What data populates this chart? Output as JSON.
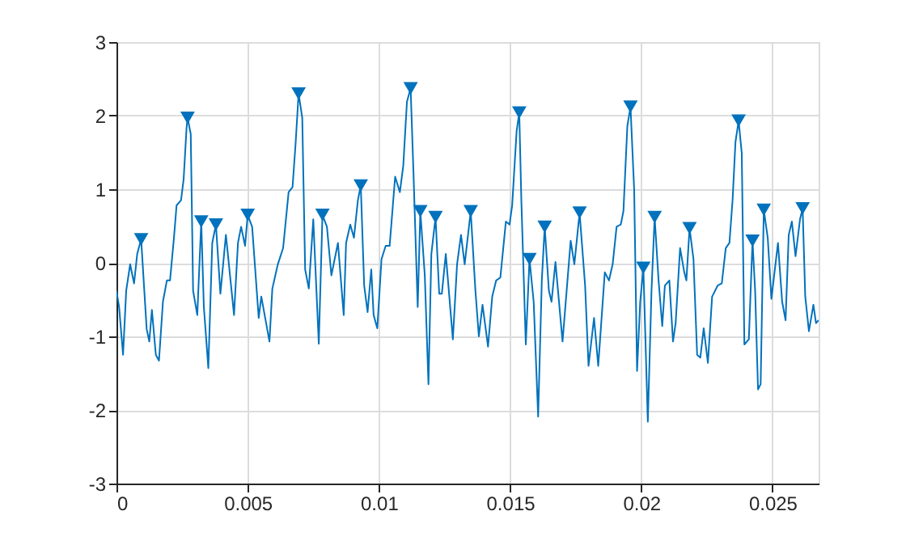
{
  "chart_data": {
    "type": "line",
    "xlim": [
      0,
      0.02676
    ],
    "xticks": [
      0,
      0.005,
      0.01,
      0.015,
      0.02,
      0.025
    ],
    "ylim": [
      -3,
      3
    ],
    "yticks": [
      -3,
      -2,
      -1,
      0,
      1,
      2,
      3
    ],
    "grid": true,
    "series": [
      {
        "color": "#0072bd",
        "marker": "none",
        "x": [
          0,
          0.0001,
          0.00025,
          0.00037,
          0.00052,
          0.00067,
          0.00079,
          0.00094,
          0.00115,
          0.00125,
          0.00135,
          0.0015,
          0.00162,
          0.00177,
          0.00192,
          0.00204,
          0.00219,
          0.00229,
          0.00246,
          0.00256,
          0.00267,
          0.00271,
          0.00283,
          0.00292,
          0.00308,
          0.00323,
          0.00333,
          0.0035,
          0.00365,
          0.00379,
          0.00396,
          0.00417,
          0.00448,
          0.00463,
          0.00475,
          0.0049,
          0.005,
          0.00517,
          0.00542,
          0.00552,
          0.00583,
          0.00594,
          0.00615,
          0.00635,
          0.00656,
          0.00671,
          0.00683,
          0.00694,
          0.00708,
          0.00719,
          0.00733,
          0.0075,
          0.00771,
          0.00785,
          0.00802,
          0.00819,
          0.00844,
          0.00866,
          0.00875,
          0.00891,
          0.00905,
          0.0092,
          0.00931,
          0.00944,
          0.00957,
          0.00971,
          0.0098,
          0.00994,
          0.0101,
          0.01026,
          0.01041,
          0.01062,
          0.0108,
          0.01093,
          0.01107,
          0.01121,
          0.01132,
          0.01148,
          0.01158,
          0.01175,
          0.01189,
          0.012,
          0.01216,
          0.0123,
          0.0124,
          0.01255,
          0.01282,
          0.01298,
          0.01313,
          0.01327,
          0.0135,
          0.01368,
          0.01381,
          0.01395,
          0.01416,
          0.01432,
          0.01447,
          0.01463,
          0.01484,
          0.01498,
          0.01508,
          0.01525,
          0.01535,
          0.01543,
          0.0156,
          0.01574,
          0.0159,
          0.01607,
          0.01621,
          0.01632,
          0.01648,
          0.01658,
          0.01673,
          0.017,
          0.01731,
          0.01745,
          0.01765,
          0.01786,
          0.01799,
          0.0182,
          0.01836,
          0.01861,
          0.01877,
          0.01891,
          0.01906,
          0.01922,
          0.01932,
          0.01947,
          0.01959,
          0.01973,
          0.01984,
          0.01996,
          0.02008,
          0.02025,
          0.02039,
          0.02051,
          0.02066,
          0.0208,
          0.0209,
          0.02107,
          0.02121,
          0.02131,
          0.02148,
          0.02164,
          0.02172,
          0.02184,
          0.02199,
          0.02213,
          0.02225,
          0.02238,
          0.02254,
          0.0227,
          0.02291,
          0.02307,
          0.02322,
          0.02336,
          0.02348,
          0.02359,
          0.02371,
          0.02383,
          0.02393,
          0.0241,
          0.02424,
          0.02434,
          0.02445,
          0.02455,
          0.02467,
          0.02482,
          0.02496,
          0.02521,
          0.02537,
          0.0255,
          0.02562,
          0.02574,
          0.02588,
          0.02605,
          0.02615,
          0.02625,
          0.02639,
          0.02656,
          0.02666,
          0.02676
        ],
        "values": [
          -0.38,
          -0.6,
          -1.25,
          -0.38,
          -0.02,
          -0.28,
          0.12,
          0.32,
          -0.9,
          -1.07,
          -0.64,
          -1.25,
          -1.33,
          -0.53,
          -0.24,
          -0.24,
          0.34,
          0.78,
          0.85,
          1.14,
          1.83,
          1.97,
          1.75,
          -0.38,
          -0.71,
          0.56,
          -0.6,
          -1.43,
          0.27,
          0.52,
          -0.42,
          0.38,
          -0.71,
          0.27,
          0.49,
          0.23,
          0.65,
          0.49,
          -0.75,
          -0.46,
          -1.07,
          -0.35,
          -0.02,
          0.2,
          0.96,
          1.03,
          1.64,
          2.3,
          1.97,
          -0.09,
          -0.35,
          0.59,
          -1.1,
          0.65,
          0.49,
          -0.17,
          0.27,
          -0.71,
          0.27,
          0.52,
          0.34,
          0.85,
          1.05,
          -0.31,
          -0.67,
          -0.09,
          -0.71,
          -0.89,
          0.05,
          0.23,
          0.23,
          1.17,
          0.96,
          1.32,
          2.19,
          2.37,
          1.21,
          -0.6,
          0.7,
          -0.17,
          -1.65,
          0.12,
          0.62,
          -0.42,
          -0.42,
          0.12,
          -1.04,
          -0.02,
          0.38,
          -0.02,
          0.7,
          -0.38,
          -1.0,
          -0.57,
          -1.14,
          -0.46,
          -0.24,
          -0.2,
          0.56,
          0.52,
          0.78,
          1.79,
          2.04,
          0.85,
          -1.11,
          0.05,
          -0.53,
          -2.09,
          -0.24,
          0.49,
          -0.38,
          -0.53,
          0.01,
          -1.07,
          0.3,
          -0.02,
          0.68,
          -0.31,
          -1.4,
          -0.75,
          -1.4,
          -0.13,
          -0.24,
          -0.02,
          0.49,
          0.52,
          0.7,
          1.86,
          2.12,
          0.99,
          -1.47,
          -0.53,
          -0.07,
          -2.16,
          -0.38,
          0.62,
          -0.24,
          -0.86,
          -0.31,
          -0.24,
          -1.07,
          -0.82,
          0.2,
          -0.13,
          -0.24,
          0.47,
          0.05,
          -1.25,
          -1.29,
          -0.89,
          -1.36,
          -0.46,
          -0.31,
          -0.28,
          0.2,
          0.27,
          0.85,
          1.64,
          1.93,
          1.49,
          -1.11,
          -1.04,
          0.3,
          -0.38,
          -1.72,
          -1.65,
          0.72,
          0.34,
          -0.49,
          0.27,
          -0.53,
          -0.78,
          0.38,
          0.56,
          0.09,
          0.59,
          0.74,
          -0.46,
          -0.93,
          -0.57,
          -0.82,
          -0.78
        ]
      },
      {
        "type": "scatter",
        "color": "#0072bd",
        "marker": "triangle",
        "x": [
          0.00094,
          0.00271,
          0.00323,
          0.00379,
          0.005,
          0.00694,
          0.00785,
          0.00931,
          0.01121,
          0.01158,
          0.01216,
          0.0135,
          0.01535,
          0.01574,
          0.01632,
          0.01765,
          0.01959,
          0.02008,
          0.02051,
          0.02184,
          0.02371,
          0.02424,
          0.02467,
          0.02615
        ],
        "values": [
          0.32,
          1.97,
          0.56,
          0.52,
          0.65,
          2.3,
          0.65,
          1.05,
          2.37,
          0.7,
          0.62,
          0.7,
          2.04,
          0.05,
          0.49,
          0.68,
          2.12,
          -0.07,
          0.62,
          0.47,
          1.93,
          0.3,
          0.72,
          0.74
        ]
      }
    ]
  }
}
